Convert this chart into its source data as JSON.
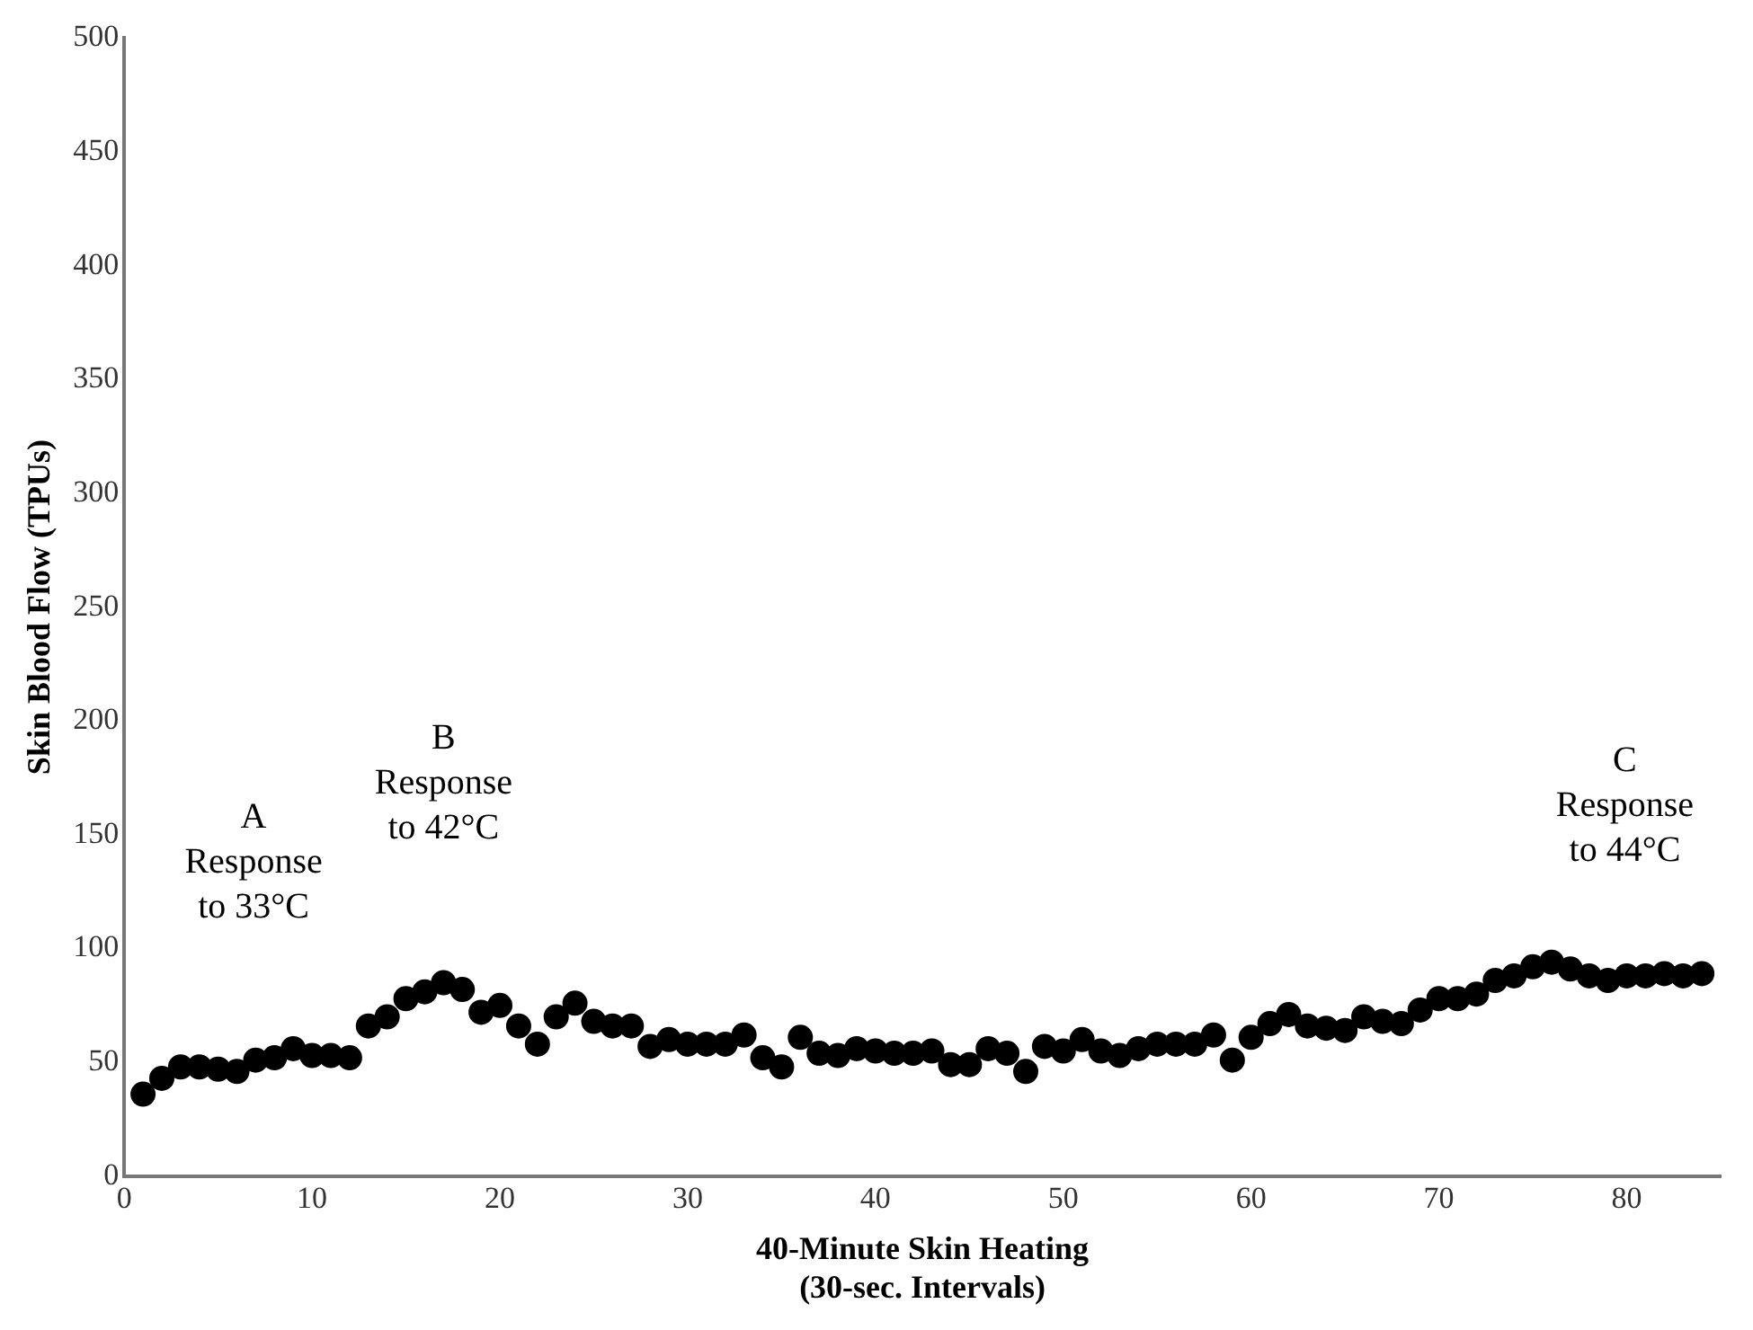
{
  "chart_data": {
    "type": "scatter",
    "xlabel": "40-Minute Skin Heating\n(30-sec. Intervals)",
    "ylabel": "Skin Blood Flow (TPUs)",
    "x": [
      1,
      2,
      3,
      4,
      5,
      6,
      7,
      8,
      9,
      10,
      11,
      12,
      13,
      14,
      15,
      16,
      17,
      18,
      19,
      20,
      21,
      22,
      23,
      24,
      25,
      26,
      27,
      28,
      29,
      30,
      31,
      32,
      33,
      34,
      35,
      36,
      37,
      38,
      39,
      40,
      41,
      42,
      43,
      44,
      45,
      46,
      47,
      48,
      49,
      50,
      51,
      52,
      53,
      54,
      55,
      56,
      57,
      58,
      59,
      60,
      61,
      62,
      63,
      64,
      65,
      66,
      67,
      68,
      69,
      70,
      71,
      72,
      73,
      74,
      75,
      76,
      77,
      78,
      79,
      80,
      81,
      82,
      83,
      84
    ],
    "series": [
      {
        "color": "#000000",
        "values": [
          36,
          43,
          48,
          48,
          47,
          46,
          51,
          52,
          56,
          53,
          53,
          52,
          66,
          70,
          78,
          81,
          85,
          82,
          72,
          75,
          66,
          58,
          70,
          76,
          68,
          66,
          66,
          57,
          60,
          58,
          58,
          58,
          62,
          52,
          48,
          61,
          54,
          53,
          56,
          55,
          54,
          54,
          55,
          49,
          49,
          56,
          54,
          46,
          57,
          55,
          60,
          55,
          53,
          56,
          58,
          58,
          58,
          62,
          51,
          61,
          67,
          71,
          66,
          65,
          64,
          70,
          68,
          67,
          73,
          78,
          78,
          80,
          86,
          88,
          92,
          94,
          91,
          88,
          86,
          88,
          88,
          89,
          88,
          89
        ]
      }
    ],
    "xlim": [
      0,
      85
    ],
    "xticks": [
      0,
      10,
      20,
      30,
      40,
      50,
      60,
      70,
      80
    ],
    "ylim": [
      0,
      500
    ],
    "yticks": [
      0,
      50,
      100,
      150,
      200,
      250,
      300,
      350,
      400,
      450,
      500
    ],
    "grid": false,
    "legend": false,
    "marker": "circle",
    "annotations": [
      "A\nResponse\nto 33°C",
      "B\nResponse\nto 42°C",
      "C\nResponse\nto 44°C"
    ]
  }
}
